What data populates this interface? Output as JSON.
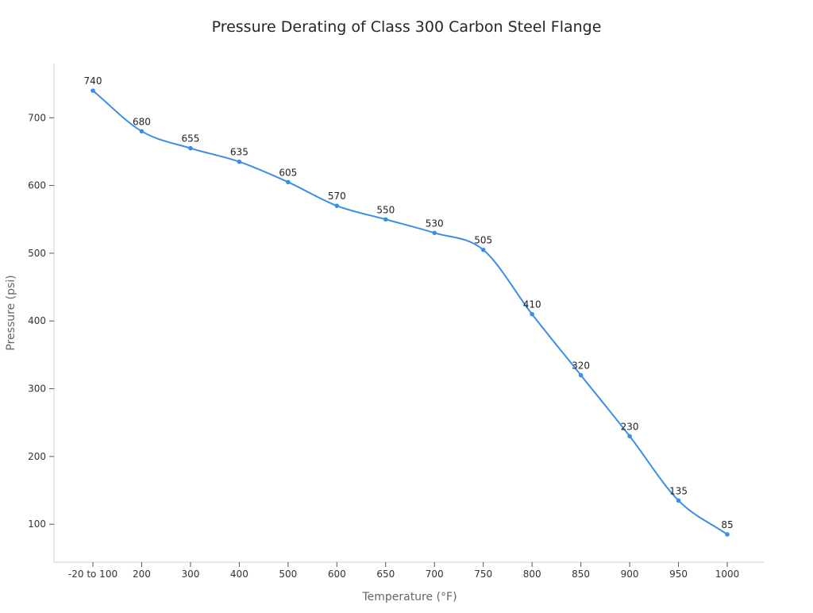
{
  "chart_data": {
    "type": "line",
    "title": "Pressure Derating of Class 300 Carbon Steel Flange",
    "xlabel": "Temperature (°F)",
    "ylabel": "Pressure (psi)",
    "categories": [
      "-20 to 100",
      "200",
      "300",
      "400",
      "500",
      "600",
      "650",
      "700",
      "750",
      "800",
      "850",
      "900",
      "950",
      "1000"
    ],
    "values": [
      740,
      680,
      655,
      635,
      605,
      570,
      550,
      530,
      505,
      410,
      320,
      230,
      135,
      85
    ],
    "yticks": [
      100,
      200,
      300,
      400,
      500,
      600,
      700
    ],
    "ylim": [
      44,
      780
    ],
    "grid": false,
    "line_color": "#3a8ee6",
    "smooth": true,
    "data_labels": true
  }
}
